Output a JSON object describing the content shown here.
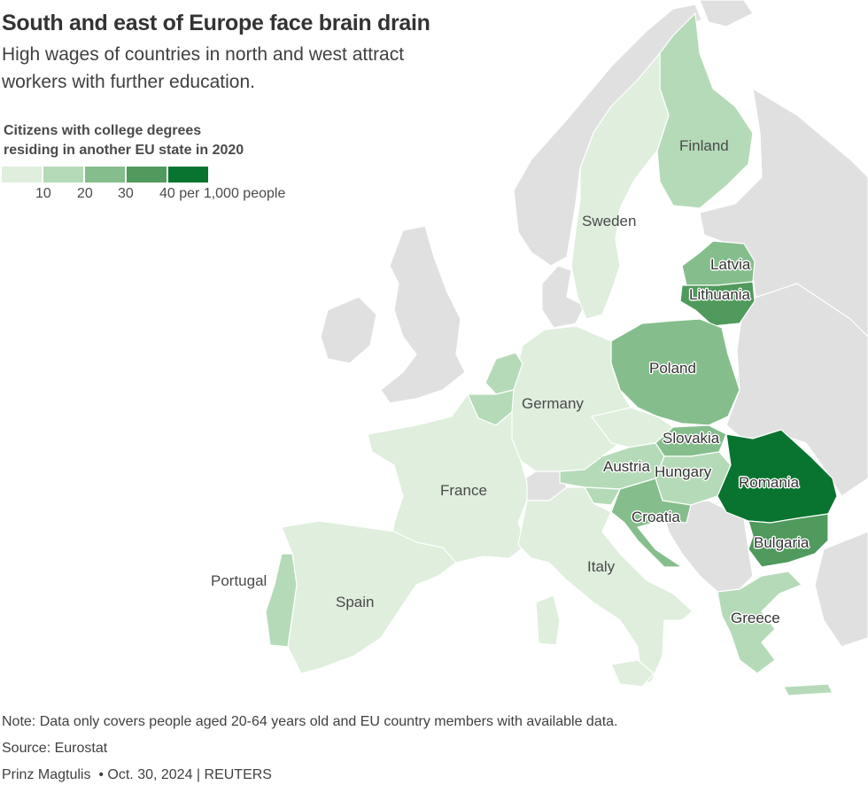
{
  "title": "South and east of Europe face brain drain",
  "subtitle": "High wages of countries in north and west attract workers with further education.",
  "legend": {
    "title_line1": "Citizens with college degrees",
    "title_line2": "residing in another EU state in 2020",
    "colors": [
      "#dfeedd",
      "#b5dab8",
      "#85be8c",
      "#4f9a5c",
      "#08742f"
    ],
    "ticks": [
      "10",
      "20",
      "30",
      "40 per 1,000 people"
    ]
  },
  "map_data": {
    "countries": [
      {
        "name": "Finland",
        "class": "10-20",
        "color": "#b5dab8"
      },
      {
        "name": "Sweden",
        "class": "<10",
        "color": "#dfeedd"
      },
      {
        "name": "Latvia",
        "class": "20-30",
        "color": "#85be8c"
      },
      {
        "name": "Lithuania",
        "class": "30-40",
        "color": "#4f9a5c"
      },
      {
        "name": "Poland",
        "class": "20-30",
        "color": "#85be8c"
      },
      {
        "name": "Germany",
        "class": "<10",
        "color": "#dfeedd"
      },
      {
        "name": "Slovakia",
        "class": "20-30",
        "color": "#85be8c"
      },
      {
        "name": "Austria",
        "class": "10-20",
        "color": "#b5dab8"
      },
      {
        "name": "Hungary",
        "class": "10-20",
        "color": "#b5dab8"
      },
      {
        "name": "Romania",
        "class": "40+",
        "color": "#08742f"
      },
      {
        "name": "Croatia",
        "class": "20-30",
        "color": "#85be8c"
      },
      {
        "name": "Bulgaria",
        "class": "30-40",
        "color": "#4f9a5c"
      },
      {
        "name": "France",
        "class": "<10",
        "color": "#dfeedd"
      },
      {
        "name": "Italy",
        "class": "<10",
        "color": "#dfeedd"
      },
      {
        "name": "Portugal",
        "class": "10-20",
        "color": "#b5dab8"
      },
      {
        "name": "Spain",
        "class": "<10",
        "color": "#dfeedd"
      },
      {
        "name": "Greece",
        "class": "10-20",
        "color": "#b5dab8"
      }
    ],
    "no_data_color": "#e0e0e0"
  },
  "note": "Note: Data only covers people aged 20-64 years old and EU country members with available data.",
  "source": "Source: Eurostat",
  "credit": "Prinz Magtulis  • Oct. 30, 2024 | REUTERS"
}
